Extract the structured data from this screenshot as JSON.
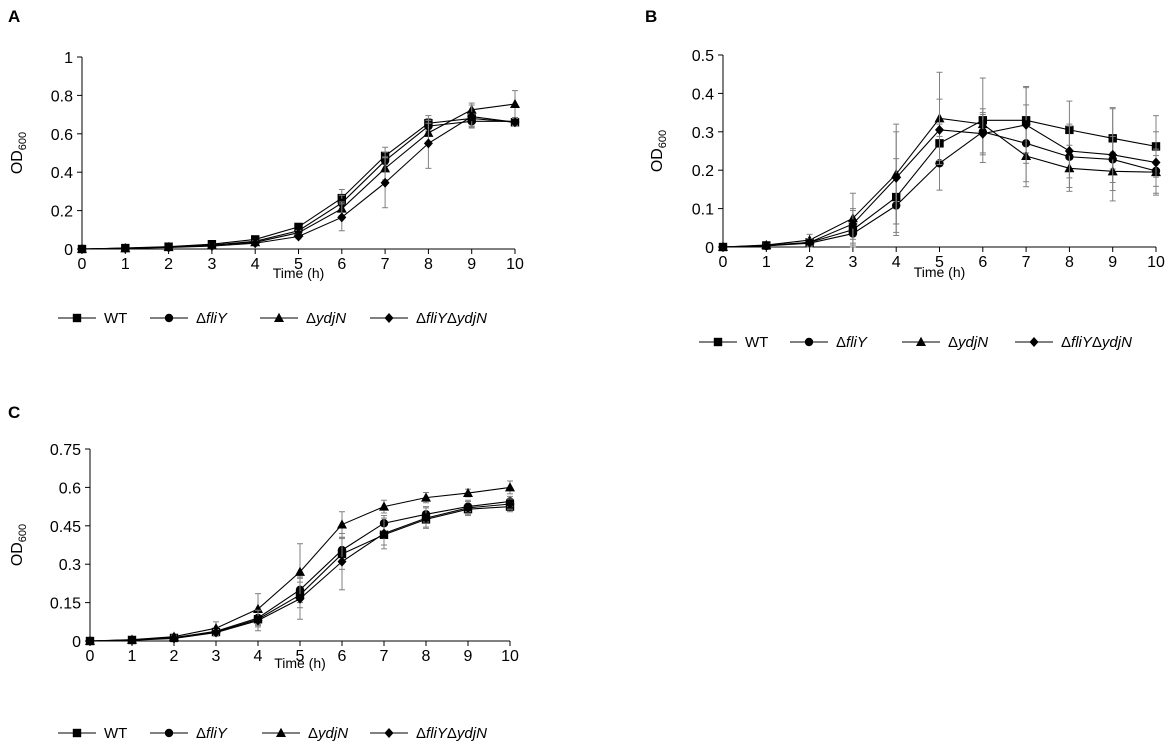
{
  "colors": {
    "series": "#000000",
    "error_bar": "#808080",
    "axis": "#000000"
  },
  "chart_data": [
    {
      "panel": "A",
      "type": "line",
      "xlabel": "Time (h)",
      "ylabel": "OD",
      "ylabel_sub": "600",
      "ylim": [
        0,
        1
      ],
      "xlim": [
        0,
        10
      ],
      "yticks": [
        0,
        0.2,
        0.4,
        0.6,
        0.8,
        1
      ],
      "ytick_labels": [
        "0",
        "0.2",
        "0.4",
        "0.6",
        "0.8",
        "1"
      ],
      "xticks": [
        0,
        1,
        2,
        3,
        4,
        5,
        6,
        7,
        8,
        9,
        10
      ],
      "x": [
        0,
        1,
        2,
        3,
        4,
        5,
        6,
        7,
        8,
        9,
        10
      ],
      "series": [
        {
          "name": "WT",
          "marker": "square",
          "values": [
            0,
            0.005,
            0.012,
            0.025,
            0.05,
            0.115,
            0.265,
            0.485,
            0.655,
            0.68,
            0.66
          ],
          "errors": [
            0,
            0.003,
            0.005,
            0.006,
            0.008,
            0.015,
            0.045,
            0.045,
            0.04,
            0.04,
            0.02
          ]
        },
        {
          "name": "ΔfliY",
          "italic": "fliY",
          "marker": "circle",
          "values": [
            0,
            0.004,
            0.01,
            0.02,
            0.04,
            0.095,
            0.24,
            0.46,
            0.64,
            0.665,
            0.665
          ],
          "errors": [
            0,
            0.003,
            0.005,
            0.006,
            0.008,
            0.012,
            0.04,
            0.045,
            0.03,
            0.03,
            0.02
          ]
        },
        {
          "name": "ΔydjN",
          "italic": "ydjN",
          "marker": "triangle",
          "values": [
            0,
            0.004,
            0.01,
            0.02,
            0.035,
            0.085,
            0.21,
            0.42,
            0.605,
            0.725,
            0.755
          ],
          "errors": [
            0,
            0.003,
            0.005,
            0.006,
            0.008,
            0.012,
            0.035,
            0.06,
            0.05,
            0.035,
            0.07
          ]
        },
        {
          "name": "ΔfliYΔydjN",
          "italic": "fliYydjN",
          "marker": "diamond",
          "values": [
            0,
            0.003,
            0.008,
            0.015,
            0.03,
            0.065,
            0.165,
            0.345,
            0.55,
            0.69,
            0.66
          ],
          "errors": [
            0,
            0.003,
            0.005,
            0.006,
            0.008,
            0.012,
            0.07,
            0.13,
            0.13,
            0.06,
            0.02
          ]
        }
      ]
    },
    {
      "panel": "B",
      "type": "line",
      "xlabel": "Time (h)",
      "ylabel": "OD",
      "ylabel_sub": "600",
      "ylim": [
        0,
        0.5
      ],
      "xlim": [
        0,
        10
      ],
      "yticks": [
        0,
        0.1,
        0.2,
        0.3,
        0.4,
        0.5
      ],
      "ytick_labels": [
        "0",
        "0.1",
        "0.2",
        "0.3",
        "0.4",
        "0.5"
      ],
      "xticks": [
        0,
        1,
        2,
        3,
        4,
        5,
        6,
        7,
        8,
        9,
        10
      ],
      "x": [
        0,
        1,
        2,
        3,
        4,
        5,
        6,
        7,
        8,
        9,
        10
      ],
      "series": [
        {
          "name": "WT",
          "marker": "square",
          "values": [
            0,
            0.004,
            0.012,
            0.045,
            0.13,
            0.27,
            0.33,
            0.33,
            0.305,
            0.283,
            0.262
          ],
          "errors": [
            0,
            0.003,
            0.01,
            0.05,
            0.1,
            0.05,
            0.11,
            0.085,
            0.075,
            0.08,
            0.08
          ]
        },
        {
          "name": "ΔfliY",
          "italic": "fliY",
          "marker": "circle",
          "values": [
            0,
            0.003,
            0.01,
            0.035,
            0.108,
            0.218,
            0.3,
            0.27,
            0.235,
            0.228,
            0.198
          ],
          "errors": [
            0,
            0.003,
            0.01,
            0.03,
            0.07,
            0.07,
            0.06,
            0.1,
            0.08,
            0.06,
            0.04
          ]
        },
        {
          "name": "ΔydjN",
          "italic": "ydjN",
          "marker": "triangle",
          "values": [
            0,
            0.005,
            0.018,
            0.075,
            0.19,
            0.335,
            0.32,
            0.237,
            0.205,
            0.197,
            0.195
          ],
          "errors": [
            0,
            0.003,
            0.015,
            0.065,
            0.13,
            0.12,
            0.03,
            0.08,
            0.06,
            0.05,
            0.06
          ]
        },
        {
          "name": "ΔfliYΔydjN",
          "italic": "fliYydjN",
          "marker": "diamond",
          "values": [
            0,
            0.003,
            0.012,
            0.06,
            0.18,
            0.305,
            0.295,
            0.318,
            0.25,
            0.24,
            0.22
          ],
          "errors": [
            0,
            0.003,
            0.01,
            0.04,
            0.12,
            0.08,
            0.05,
            0.1,
            0.07,
            0.12,
            0.08
          ]
        }
      ]
    },
    {
      "panel": "C",
      "type": "line",
      "xlabel": "Time (h)",
      "ylabel": "OD",
      "ylabel_sub": "600",
      "ylim": [
        0,
        0.75
      ],
      "xlim": [
        0,
        10
      ],
      "yticks": [
        0,
        0.15,
        0.3,
        0.45,
        0.6,
        0.75
      ],
      "ytick_labels": [
        "0",
        "0.15",
        "0.3",
        "0.45",
        "0.6",
        "0.75"
      ],
      "xticks": [
        0,
        1,
        2,
        3,
        4,
        5,
        6,
        7,
        8,
        9,
        10
      ],
      "x": [
        0,
        1,
        2,
        3,
        4,
        5,
        6,
        7,
        8,
        9,
        10
      ],
      "series": [
        {
          "name": "WT",
          "marker": "square",
          "values": [
            0,
            0.004,
            0.012,
            0.035,
            0.085,
            0.18,
            0.34,
            0.415,
            0.475,
            0.515,
            0.525
          ],
          "errors": [
            0,
            0.003,
            0.005,
            0.015,
            0.03,
            0.05,
            0.06,
            0.04,
            0.03,
            0.02,
            0.02
          ]
        },
        {
          "name": "ΔfliY",
          "italic": "fliY",
          "marker": "circle",
          "values": [
            0,
            0.004,
            0.013,
            0.038,
            0.09,
            0.2,
            0.355,
            0.46,
            0.495,
            0.525,
            0.545
          ],
          "errors": [
            0,
            0.003,
            0.005,
            0.012,
            0.03,
            0.05,
            0.05,
            0.03,
            0.03,
            0.02,
            0.02
          ]
        },
        {
          "name": "ΔydjN",
          "italic": "ydjN",
          "marker": "triangle",
          "values": [
            0,
            0.005,
            0.017,
            0.05,
            0.125,
            0.27,
            0.455,
            0.525,
            0.56,
            0.578,
            0.6
          ],
          "errors": [
            0,
            0.003,
            0.006,
            0.025,
            0.06,
            0.11,
            0.05,
            0.025,
            0.02,
            0.015,
            0.025
          ]
        },
        {
          "name": "ΔfliYΔydjN",
          "italic": "fliYydjN",
          "marker": "diamond",
          "values": [
            0,
            0.003,
            0.01,
            0.033,
            0.08,
            0.165,
            0.31,
            0.42,
            0.48,
            0.52,
            0.535
          ],
          "errors": [
            0,
            0.003,
            0.005,
            0.012,
            0.04,
            0.08,
            0.11,
            0.06,
            0.04,
            0.03,
            0.02
          ]
        }
      ]
    }
  ],
  "legend": [
    {
      "prefix": "",
      "italic": "",
      "plain": "WT"
    },
    {
      "prefix": "Δ",
      "italic": "fliY",
      "plain": ""
    },
    {
      "prefix": "Δ",
      "italic": "ydjN",
      "plain": ""
    },
    {
      "prefix": "Δ",
      "italic": "fliY",
      "mid": "Δ",
      "italic2": "ydjN",
      "plain": ""
    }
  ]
}
